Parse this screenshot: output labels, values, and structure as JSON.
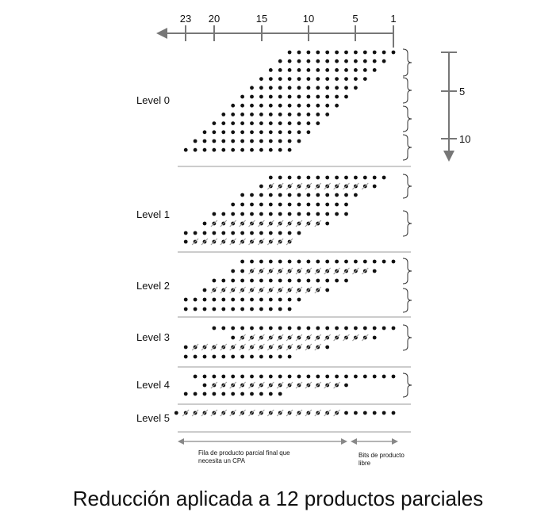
{
  "title": "Reducción aplicada a 12 productos parciales",
  "top_axis": {
    "ticks": [
      "23",
      "20",
      "15",
      "10",
      "5",
      "1"
    ],
    "direction": "left"
  },
  "right_axis": {
    "ticks": [
      "5",
      "10"
    ],
    "direction": "down"
  },
  "levels": [
    {
      "label": "Level 0",
      "rows": 12
    },
    {
      "label": "Level 1",
      "rows": 8
    },
    {
      "label": "Level 2",
      "rows": 6
    },
    {
      "label": "Level 3",
      "rows": 4
    },
    {
      "label": "Level 4",
      "rows": 3
    },
    {
      "label": "Level 5",
      "rows": 1
    }
  ],
  "footer": {
    "left_note_line1": "Fila de producto parcial final que",
    "left_note_line2": "necesita un CPA",
    "right_note_line1": "Bits de producto",
    "right_note_line2": "libre"
  }
}
